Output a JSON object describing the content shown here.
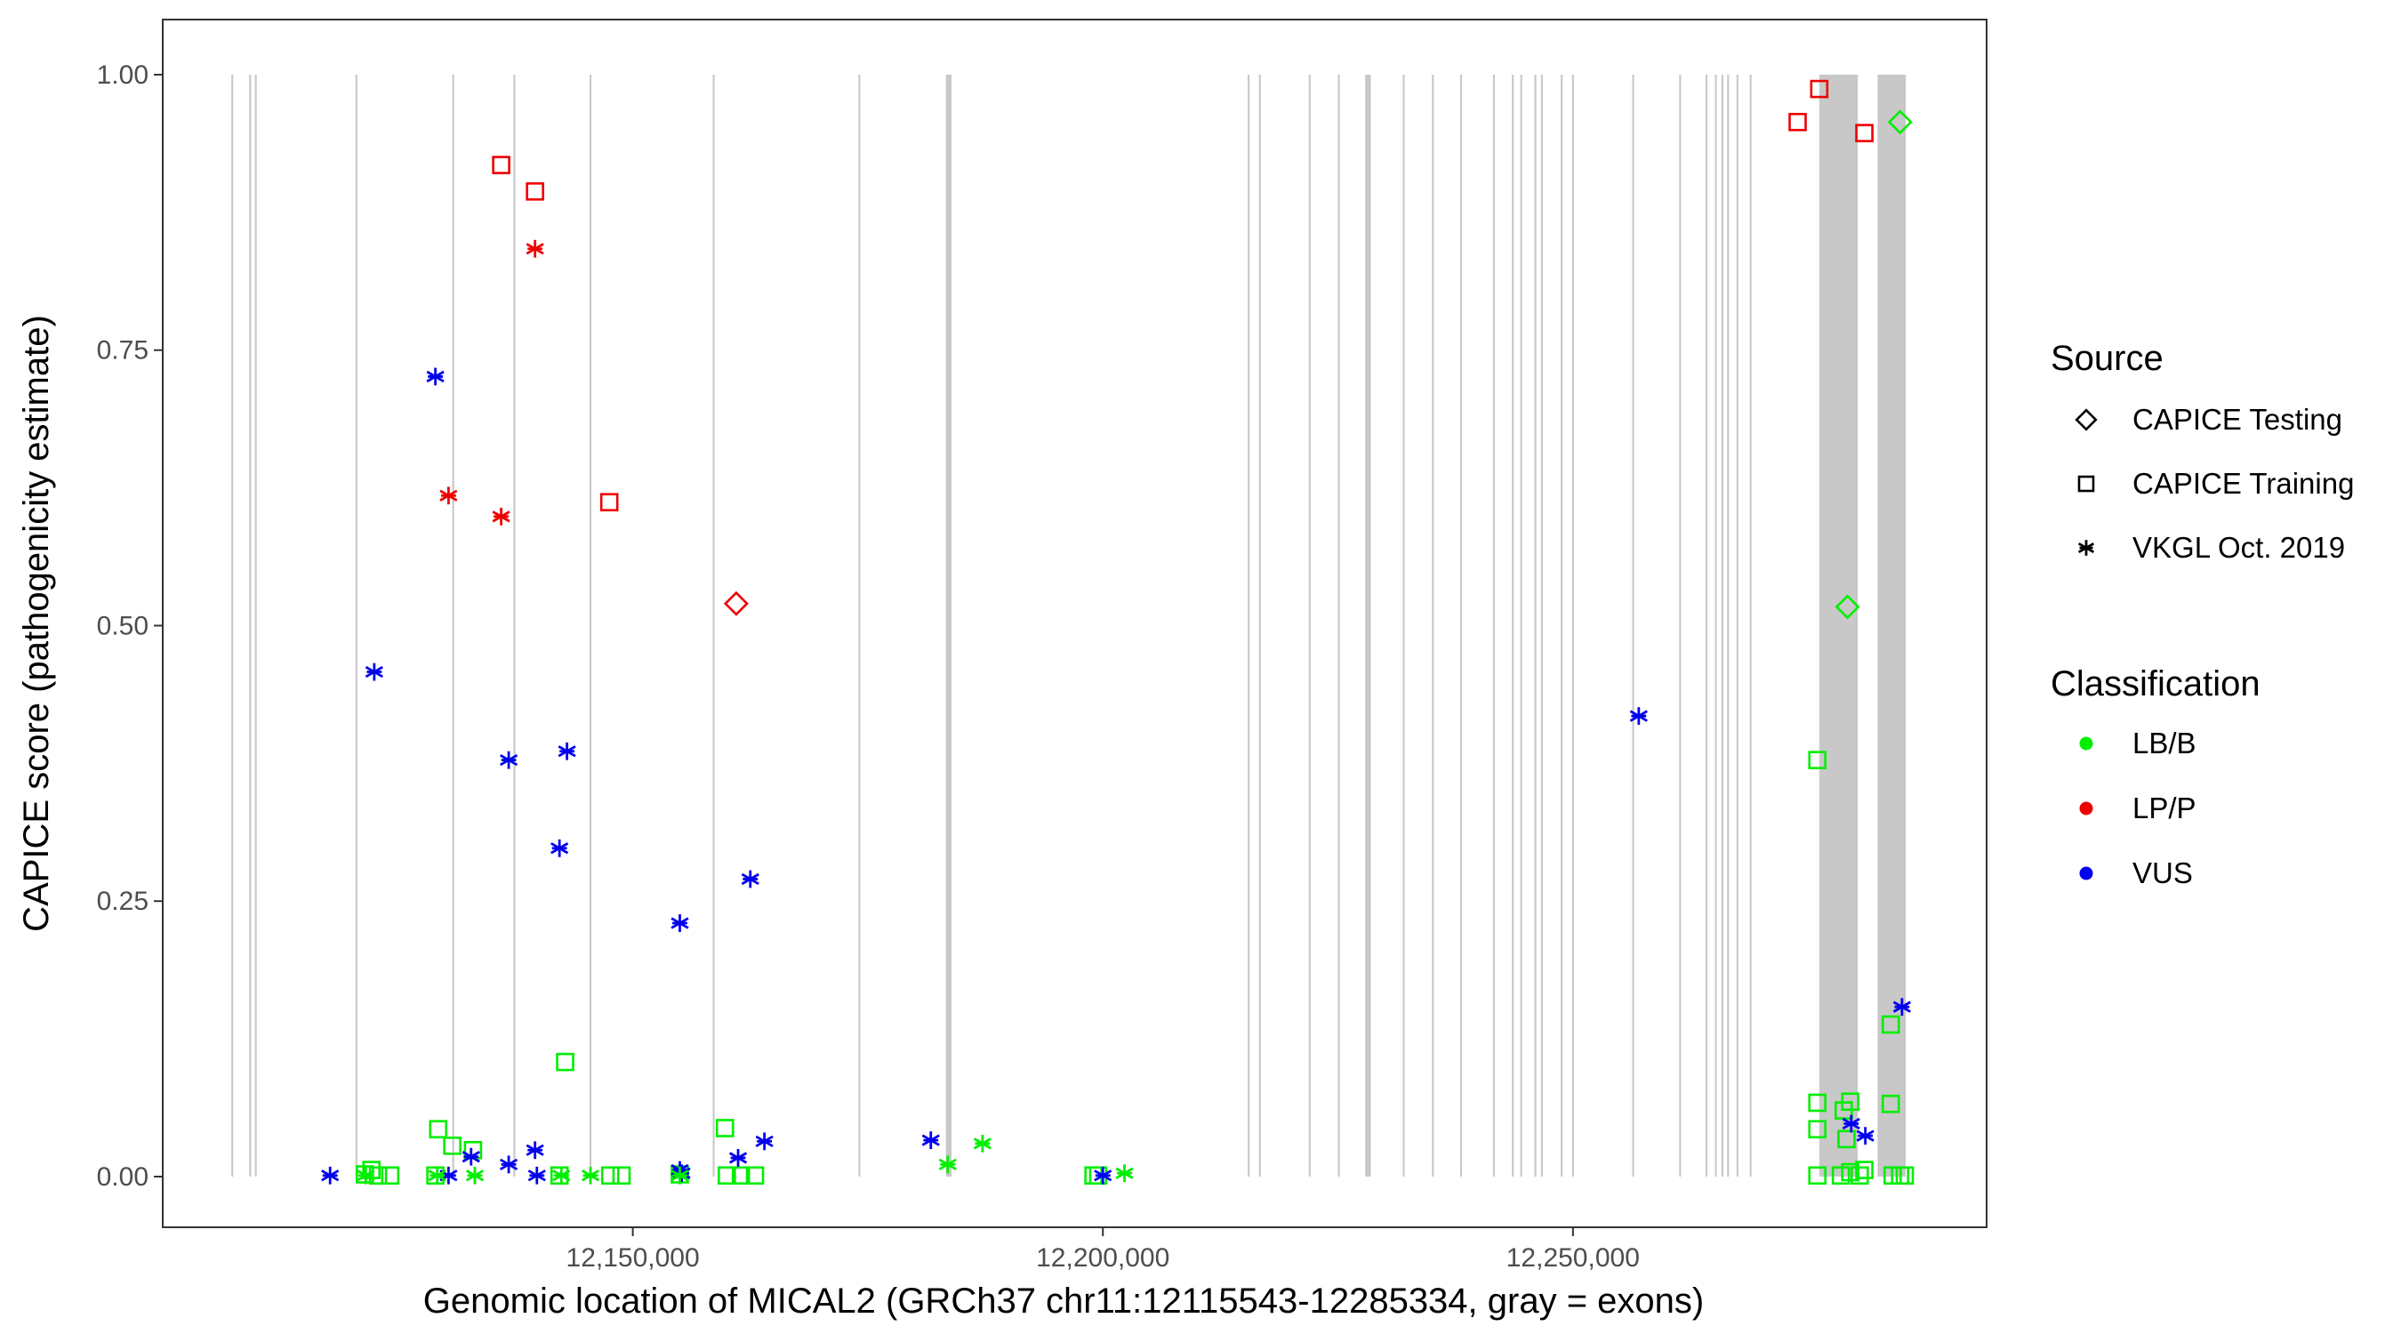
{
  "chart_data": {
    "type": "scatter",
    "xlabel": "Genomic location of MICAL2 (GRCh37 chr11:12115543-12285334, gray = exons)",
    "ylabel": "CAPICE score (pathogenicity estimate)",
    "xlim": [
      12100000,
      12294000
    ],
    "ylim": [
      -0.046,
      1.05
    ],
    "x_ticks": [
      12150000,
      12200000,
      12250000
    ],
    "x_tick_labels": [
      "12,150,000",
      "12,200,000",
      "12,250,000"
    ],
    "y_ticks": [
      0,
      0.25,
      0.5,
      0.75,
      1
    ],
    "y_tick_labels": [
      "0.00",
      "0.25",
      "0.50",
      "0.75",
      "1.00"
    ],
    "grid": false,
    "colors": {
      "LB/B": "#00ee00",
      "LP/P": "#ee0000",
      "VUS": "#0000ee",
      "exon": "#c8c8c8"
    },
    "exons": [
      [
        12107300,
        12107500
      ],
      [
        12109200,
        12109400
      ],
      [
        12109800,
        12110000
      ],
      [
        12120500,
        12120700
      ],
      [
        12130800,
        12131000
      ],
      [
        12137300,
        12137500
      ],
      [
        12145400,
        12145600
      ],
      [
        12158500,
        12158700
      ],
      [
        12174000,
        12174200
      ],
      [
        12183300,
        12183900
      ],
      [
        12215400,
        12215600
      ],
      [
        12216600,
        12216800
      ],
      [
        12221900,
        12222100
      ],
      [
        12225000,
        12225200
      ],
      [
        12227900,
        12228500
      ],
      [
        12231900,
        12232100
      ],
      [
        12235000,
        12235200
      ],
      [
        12238000,
        12238200
      ],
      [
        12241500,
        12241700
      ],
      [
        12243500,
        12243700
      ],
      [
        12244400,
        12244600
      ],
      [
        12245900,
        12246100
      ],
      [
        12246600,
        12246800
      ],
      [
        12248700,
        12248900
      ],
      [
        12249900,
        12250100
      ],
      [
        12256300,
        12256500
      ],
      [
        12261300,
        12261500
      ],
      [
        12264100,
        12264300
      ],
      [
        12265100,
        12265300
      ],
      [
        12265800,
        12266000
      ],
      [
        12266400,
        12266600
      ],
      [
        12267400,
        12267600
      ],
      [
        12268800,
        12269000
      ],
      [
        12276200,
        12280300
      ],
      [
        12282400,
        12285400
      ]
    ],
    "series": [
      {
        "source": "CAPICE Testing",
        "classification": "LB/B",
        "marker": "diamond",
        "points": [
          [
            12284800,
            0.957
          ],
          [
            12279200,
            0.517
          ]
        ]
      },
      {
        "source": "CAPICE Testing",
        "classification": "LP/P",
        "marker": "diamond",
        "points": [
          [
            12161000,
            0.52
          ]
        ]
      },
      {
        "source": "CAPICE Training",
        "classification": "LP/P",
        "marker": "square",
        "points": [
          [
            12136000,
            0.918
          ],
          [
            12139600,
            0.894
          ],
          [
            12147500,
            0.612
          ],
          [
            12273900,
            0.957
          ],
          [
            12276200,
            0.987
          ],
          [
            12281000,
            0.947
          ]
        ]
      },
      {
        "source": "CAPICE Training",
        "classification": "LB/B",
        "marker": "square",
        "points": [
          [
            12121500,
            0.002
          ],
          [
            12122200,
            0.006
          ],
          [
            12122900,
            0.001
          ],
          [
            12124200,
            0.001
          ],
          [
            12129300,
            0.043
          ],
          [
            12129000,
            0.001
          ],
          [
            12130800,
            0.028
          ],
          [
            12133000,
            0.024
          ],
          [
            12142800,
            0.104
          ],
          [
            12142200,
            0.001
          ],
          [
            12147600,
            0.001
          ],
          [
            12148800,
            0.001
          ],
          [
            12155000,
            0.002
          ],
          [
            12159800,
            0.044
          ],
          [
            12160000,
            0.001
          ],
          [
            12161500,
            0.001
          ],
          [
            12163000,
            0.001
          ],
          [
            12199000,
            0.001
          ],
          [
            12199500,
            0.001
          ],
          [
            12276000,
            0.378
          ],
          [
            12276000,
            0.067
          ],
          [
            12276000,
            0.043
          ],
          [
            12276000,
            0.001
          ],
          [
            12278500,
            0.001
          ],
          [
            12278800,
            0.06
          ],
          [
            12279100,
            0.034
          ],
          [
            12279500,
            0.068
          ],
          [
            12279500,
            0.004
          ],
          [
            12280500,
            0.001
          ],
          [
            12281000,
            0.006
          ],
          [
            12283800,
            0.138
          ],
          [
            12283800,
            0.066
          ],
          [
            12284000,
            0.001
          ],
          [
            12284800,
            0.001
          ],
          [
            12285300,
            0.001
          ]
        ]
      },
      {
        "source": "VKGL Oct. 2019",
        "classification": "LP/P",
        "marker": "asterisk",
        "points": [
          [
            12139600,
            0.842
          ],
          [
            12130400,
            0.618
          ],
          [
            12136000,
            0.599
          ]
        ]
      },
      {
        "source": "VKGL Oct. 2019",
        "classification": "VUS",
        "marker": "asterisk",
        "points": [
          [
            12129000,
            0.726
          ],
          [
            12122500,
            0.458
          ],
          [
            12143000,
            0.386
          ],
          [
            12136800,
            0.378
          ],
          [
            12142200,
            0.298
          ],
          [
            12162500,
            0.27
          ],
          [
            12155000,
            0.23
          ],
          [
            12257000,
            0.418
          ],
          [
            12285000,
            0.154
          ],
          [
            12117800,
            0.001
          ],
          [
            12130400,
            0.001
          ],
          [
            12132800,
            0.018
          ],
          [
            12136800,
            0.011
          ],
          [
            12139600,
            0.024
          ],
          [
            12139800,
            0.001
          ],
          [
            12155000,
            0.006
          ],
          [
            12155200,
            0.003
          ],
          [
            12161200,
            0.017
          ],
          [
            12164000,
            0.032
          ],
          [
            12181700,
            0.033
          ],
          [
            12200000,
            0.001
          ],
          [
            12279600,
            0.048
          ],
          [
            12281100,
            0.037
          ]
        ]
      },
      {
        "source": "VKGL Oct. 2019",
        "classification": "LB/B",
        "marker": "asterisk",
        "points": [
          [
            12121600,
            0.001
          ],
          [
            12129200,
            0.001
          ],
          [
            12133200,
            0.001
          ],
          [
            12142400,
            0.001
          ],
          [
            12145500,
            0.001
          ],
          [
            12155000,
            0.001
          ],
          [
            12183500,
            0.011
          ],
          [
            12187200,
            0.03
          ],
          [
            12202300,
            0.003
          ]
        ]
      }
    ]
  },
  "legend": {
    "source_title": "Source",
    "source_items": [
      {
        "label": "CAPICE Testing",
        "marker": "diamond"
      },
      {
        "label": "CAPICE Training",
        "marker": "square"
      },
      {
        "label": "VKGL Oct. 2019",
        "marker": "asterisk"
      }
    ],
    "class_title": "Classification",
    "class_items": [
      {
        "label": "LB/B",
        "color": "#00ee00"
      },
      {
        "label": "LP/P",
        "color": "#ee0000"
      },
      {
        "label": "VUS",
        "color": "#0000ee"
      }
    ]
  }
}
